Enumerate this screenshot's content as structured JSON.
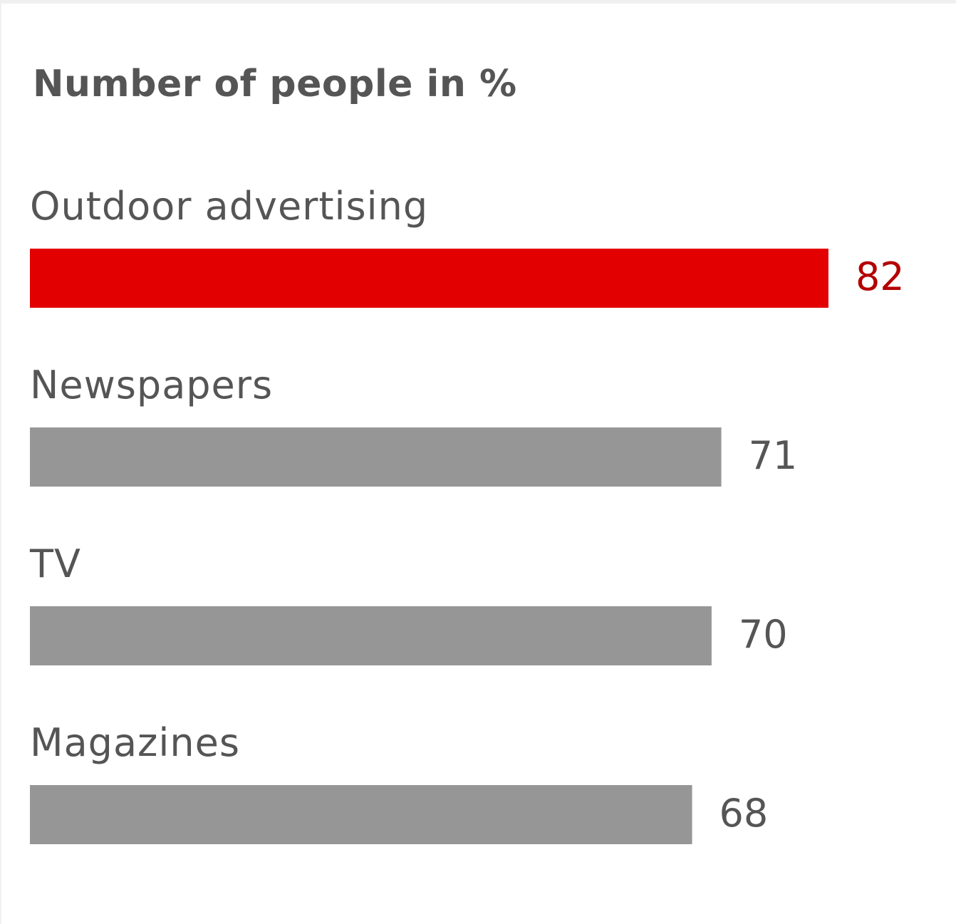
{
  "chart_data": {
    "type": "bar",
    "orientation": "horizontal",
    "title": "Number of people in %",
    "categories": [
      "Outdoor advertising",
      "Newspapers",
      "TV",
      "Magazines"
    ],
    "values": [
      82,
      71,
      70,
      68
    ],
    "highlight_index": 0,
    "colors": {
      "highlight_bar": "#e30000",
      "highlight_value": "#b30000",
      "bar": "#969696",
      "value": "#555555",
      "label": "#555555"
    },
    "xlabel": "",
    "ylabel": "",
    "xlim": [
      0,
      100
    ],
    "grid": false,
    "legend": "none"
  }
}
